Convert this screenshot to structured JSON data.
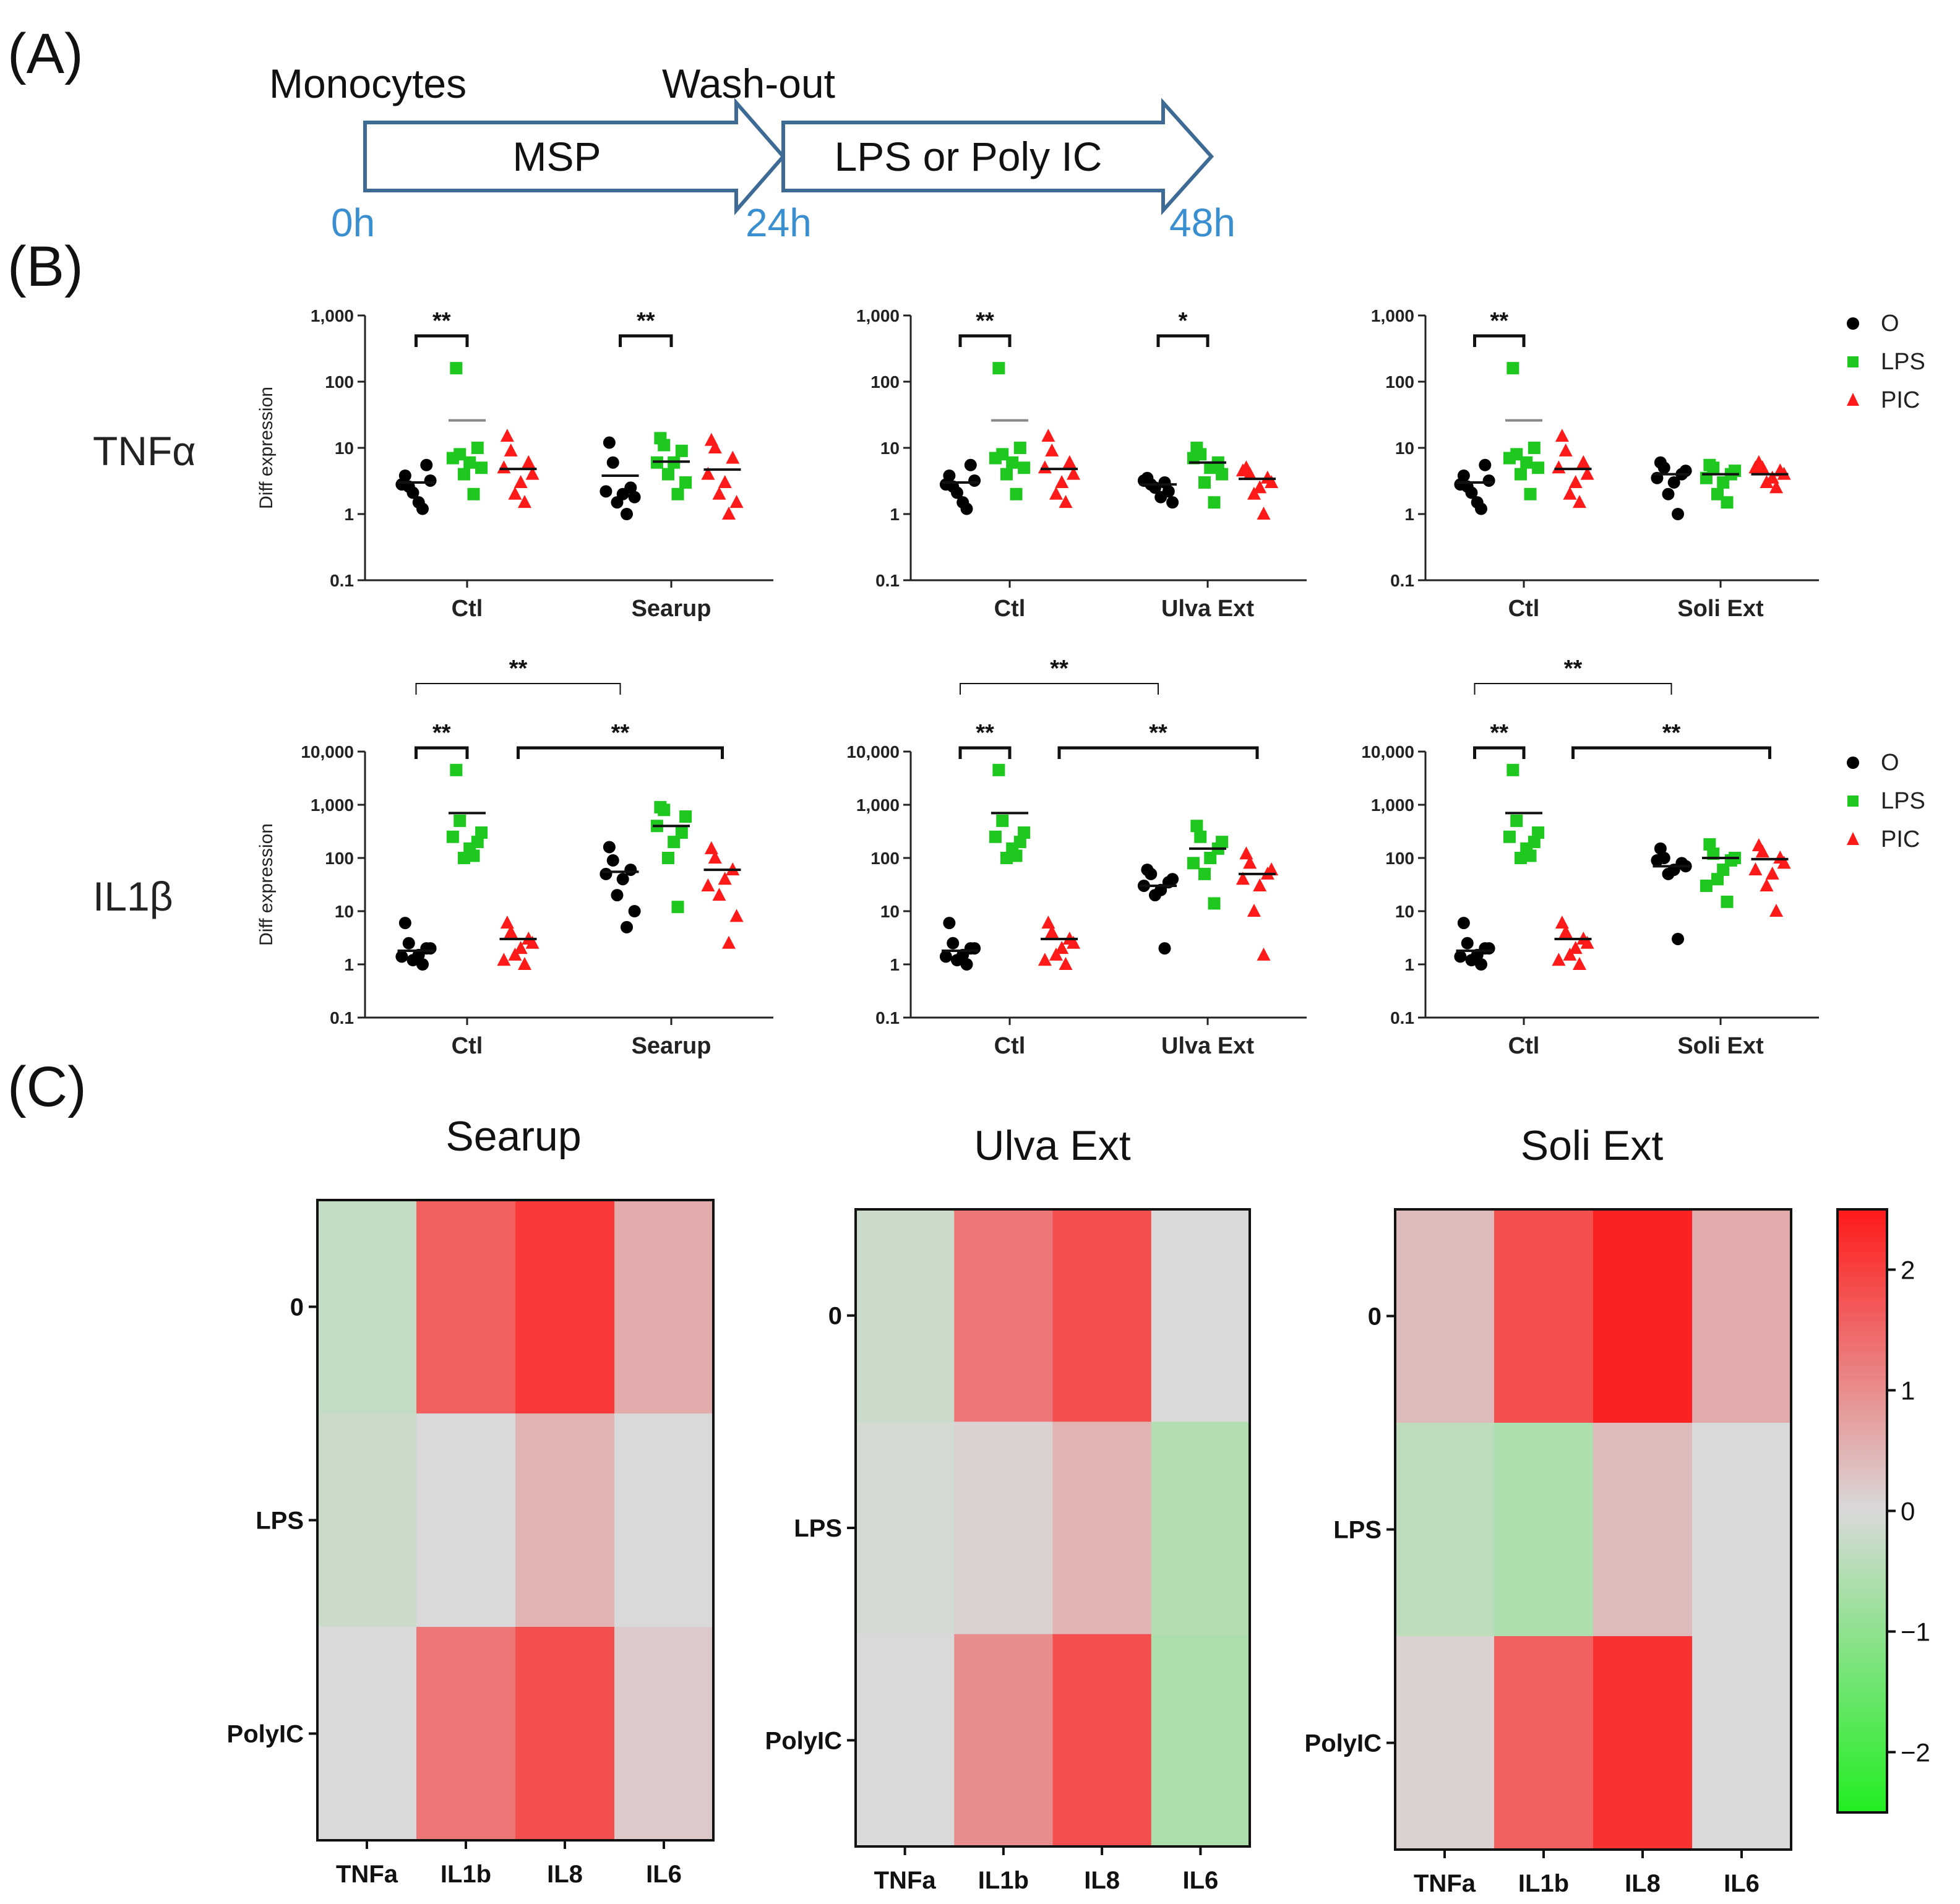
{
  "panel_labels": [
    "(A)",
    "(B)",
    "(C)"
  ],
  "timeline": {
    "label_start": "Monocytes",
    "label_mid": "Wash-out",
    "arrow1_text": "MSP",
    "arrow2_text": "LPS or Poly IC",
    "t0": "0h",
    "t1": "24h",
    "t2": "48h",
    "arrow_color": "#3e6b96",
    "time_color": "#3a8fd0"
  },
  "colors": {
    "O": "#000000",
    "LPS": "#1ec81e",
    "PIC": "#ff1a1a"
  },
  "chart_data": [
    {
      "type": "scatter",
      "id": "tnf-searup",
      "gene": "TNFα",
      "ylabel": "Diff expression",
      "yscale": "log",
      "ylim": [
        0.1,
        1000
      ],
      "yticks": [
        "0.1",
        "1",
        "10",
        "100",
        "1,000"
      ],
      "groups": [
        "Ctl",
        "Searup"
      ],
      "series": [
        {
          "name": "O",
          "group": "Ctl",
          "values": [
            3.8,
            2.6,
            5.5,
            1.5,
            2.1,
            1.2,
            3.2,
            2.8
          ],
          "mean": 3.0
        },
        {
          "name": "LPS",
          "group": "Ctl",
          "values": [
            160,
            8,
            10,
            6,
            4,
            2,
            5,
            7
          ],
          "mean": 26
        },
        {
          "name": "PIC",
          "group": "Ctl",
          "values": [
            15,
            9,
            6,
            3,
            2,
            1.5,
            4,
            5
          ],
          "mean": 4.8
        },
        {
          "name": "O",
          "group": "Searup",
          "values": [
            12,
            6,
            2.5,
            2,
            1.5,
            1,
            1.8,
            2.2
          ],
          "mean": 3.8
        },
        {
          "name": "LPS",
          "group": "Searup",
          "values": [
            14,
            11,
            9,
            6,
            4,
            2,
            3,
            6
          ],
          "mean": 6.2
        },
        {
          "name": "PIC",
          "group": "Searup",
          "values": [
            13,
            10,
            7,
            3,
            2,
            1,
            1.5,
            4
          ],
          "mean": 4.7
        }
      ],
      "significance": [
        {
          "label": "**",
          "from": [
            "Ctl",
            "O"
          ],
          "to": [
            "Ctl",
            "LPS"
          ]
        },
        {
          "label": "**",
          "from": [
            "Searup",
            "O"
          ],
          "to": [
            "Searup",
            "LPS"
          ]
        }
      ]
    },
    {
      "type": "scatter",
      "id": "tnf-ulva",
      "gene": "TNFα",
      "ylabel": "",
      "yscale": "log",
      "ylim": [
        0.1,
        1000
      ],
      "yticks": [
        "0.1",
        "1",
        "10",
        "100",
        "1,000"
      ],
      "groups": [
        "Ctl",
        "Ulva Ext"
      ],
      "series": [
        {
          "name": "O",
          "group": "Ctl",
          "values": [
            3.8,
            2.6,
            5.5,
            1.5,
            2.1,
            1.2,
            3.2,
            2.8
          ],
          "mean": 3.0
        },
        {
          "name": "LPS",
          "group": "Ctl",
          "values": [
            160,
            8,
            10,
            6,
            4,
            2,
            5,
            7
          ],
          "mean": 26
        },
        {
          "name": "PIC",
          "group": "Ctl",
          "values": [
            15,
            9,
            6,
            3,
            2,
            1.5,
            4,
            5
          ],
          "mean": 4.8
        },
        {
          "name": "O",
          "group": "Ulva Ext",
          "values": [
            3.5,
            2.8,
            2.2,
            1.8,
            2.5,
            3.0,
            1.5,
            3.2
          ],
          "mean": 2.8
        },
        {
          "name": "LPS",
          "group": "Ulva Ext",
          "values": [
            10,
            8,
            6,
            5,
            3,
            1.5,
            4,
            7
          ],
          "mean": 6.0
        },
        {
          "name": "PIC",
          "group": "Ulva Ext",
          "values": [
            5,
            4,
            3.5,
            2.5,
            2,
            1,
            3,
            4.5
          ],
          "mean": 3.4
        }
      ],
      "significance": [
        {
          "label": "**",
          "from": [
            "Ctl",
            "O"
          ],
          "to": [
            "Ctl",
            "LPS"
          ]
        },
        {
          "label": "*",
          "from": [
            "Ulva Ext",
            "O"
          ],
          "to": [
            "Ulva Ext",
            "LPS"
          ]
        }
      ]
    },
    {
      "type": "scatter",
      "id": "tnf-soli",
      "gene": "TNFα",
      "ylabel": "",
      "yscale": "log",
      "ylim": [
        0.1,
        1000
      ],
      "yticks": [
        "0.1",
        "1",
        "10",
        "100",
        "1,000"
      ],
      "groups": [
        "Ctl",
        "Soli Ext"
      ],
      "series": [
        {
          "name": "O",
          "group": "Ctl",
          "values": [
            3.8,
            2.6,
            5.5,
            1.5,
            2.1,
            1.2,
            3.2,
            2.8
          ],
          "mean": 3.0
        },
        {
          "name": "LPS",
          "group": "Ctl",
          "values": [
            160,
            8,
            10,
            6,
            4,
            2,
            5,
            7
          ],
          "mean": 26
        },
        {
          "name": "PIC",
          "group": "Ctl",
          "values": [
            15,
            9,
            6,
            3,
            2,
            1.5,
            4,
            5
          ],
          "mean": 4.8
        },
        {
          "name": "O",
          "group": "Soli Ext",
          "values": [
            6,
            5,
            4,
            3,
            2,
            1,
            4.5,
            3.5
          ],
          "mean": 4.0
        },
        {
          "name": "LPS",
          "group": "Soli Ext",
          "values": [
            5.5,
            5,
            4,
            3,
            2,
            1.5,
            4.5,
            3.5
          ],
          "mean": 4.0
        },
        {
          "name": "PIC",
          "group": "Soli Ext",
          "values": [
            6,
            5,
            4.5,
            3.5,
            3,
            2.5,
            4,
            5
          ],
          "mean": 4.0
        }
      ],
      "significance": [
        {
          "label": "**",
          "from": [
            "Ctl",
            "O"
          ],
          "to": [
            "Ctl",
            "LPS"
          ]
        }
      ]
    },
    {
      "type": "scatter",
      "id": "il1-searup",
      "gene": "IL1β",
      "ylabel": "Diff expression",
      "yscale": "log",
      "ylim": [
        0.1,
        10000
      ],
      "yticks": [
        "0.1",
        "1",
        "10",
        "100",
        "1,000",
        "10,000"
      ],
      "groups": [
        "Ctl",
        "Searup"
      ],
      "series": [
        {
          "name": "O",
          "group": "Ctl",
          "values": [
            6,
            2.5,
            2,
            1.5,
            1.2,
            1,
            2,
            1.4
          ],
          "mean": 1.8
        },
        {
          "name": "LPS",
          "group": "Ctl",
          "values": [
            4500,
            500,
            200,
            150,
            100,
            110,
            300,
            250
          ],
          "mean": 700
        },
        {
          "name": "PIC",
          "group": "Ctl",
          "values": [
            6,
            4,
            3,
            2,
            1.5,
            1,
            2.5,
            1.2
          ],
          "mean": 3.0
        },
        {
          "name": "O",
          "group": "Searup",
          "values": [
            160,
            90,
            60,
            40,
            20,
            5,
            10,
            50
          ],
          "mean": 55
        },
        {
          "name": "LPS",
          "group": "Searup",
          "values": [
            900,
            800,
            300,
            200,
            100,
            12,
            600,
            400
          ],
          "mean": 400
        },
        {
          "name": "PIC",
          "group": "Searup",
          "values": [
            150,
            100,
            60,
            40,
            20,
            2.5,
            8,
            30
          ],
          "mean": 60
        }
      ],
      "significance": [
        {
          "label": "**",
          "from": [
            "Ctl",
            "O"
          ],
          "to": [
            "Searup",
            "O"
          ]
        },
        {
          "label": "**",
          "from": [
            "Ctl",
            "O"
          ],
          "to": [
            "Ctl",
            "LPS"
          ]
        },
        {
          "label": "**",
          "from": [
            "Ctl",
            "PIC"
          ],
          "to": [
            "Searup",
            "PIC"
          ]
        }
      ]
    },
    {
      "type": "scatter",
      "id": "il1-ulva",
      "gene": "IL1β",
      "ylabel": "",
      "yscale": "log",
      "ylim": [
        0.1,
        10000
      ],
      "yticks": [
        "0.1",
        "1",
        "10",
        "100",
        "1,000",
        "10,000"
      ],
      "groups": [
        "Ctl",
        "Ulva Ext"
      ],
      "series": [
        {
          "name": "O",
          "group": "Ctl",
          "values": [
            6,
            2.5,
            2,
            1.5,
            1.2,
            1,
            2,
            1.4
          ],
          "mean": 1.8
        },
        {
          "name": "LPS",
          "group": "Ctl",
          "values": [
            4500,
            500,
            200,
            150,
            100,
            110,
            300,
            250
          ],
          "mean": 700
        },
        {
          "name": "PIC",
          "group": "Ctl",
          "values": [
            6,
            4,
            3,
            2,
            1.5,
            1,
            2.5,
            1.2
          ],
          "mean": 3.0
        },
        {
          "name": "O",
          "group": "Ulva Ext",
          "values": [
            60,
            50,
            35,
            25,
            20,
            2,
            40,
            30
          ],
          "mean": 30
        },
        {
          "name": "LPS",
          "group": "Ulva Ext",
          "values": [
            400,
            250,
            150,
            100,
            50,
            14,
            200,
            80
          ],
          "mean": 150
        },
        {
          "name": "PIC",
          "group": "Ulva Ext",
          "values": [
            120,
            80,
            50,
            30,
            10,
            1.5,
            60,
            40
          ],
          "mean": 50
        }
      ],
      "significance": [
        {
          "label": "**",
          "from": [
            "Ctl",
            "O"
          ],
          "to": [
            "Ulva Ext",
            "O"
          ]
        },
        {
          "label": "**",
          "from": [
            "Ctl",
            "O"
          ],
          "to": [
            "Ctl",
            "LPS"
          ]
        },
        {
          "label": "**",
          "from": [
            "Ctl",
            "PIC"
          ],
          "to": [
            "Ulva Ext",
            "PIC"
          ]
        }
      ]
    },
    {
      "type": "scatter",
      "id": "il1-soli",
      "gene": "IL1β",
      "ylabel": "",
      "yscale": "log",
      "ylim": [
        0.1,
        10000
      ],
      "yticks": [
        "0.1",
        "1",
        "10",
        "100",
        "1,000",
        "10,000"
      ],
      "groups": [
        "Ctl",
        "Soli Ext"
      ],
      "series": [
        {
          "name": "O",
          "group": "Ctl",
          "values": [
            6,
            2.5,
            2,
            1.5,
            1.2,
            1,
            2,
            1.4
          ],
          "mean": 1.8
        },
        {
          "name": "LPS",
          "group": "Ctl",
          "values": [
            4500,
            500,
            200,
            150,
            100,
            110,
            300,
            250
          ],
          "mean": 700
        },
        {
          "name": "PIC",
          "group": "Ctl",
          "values": [
            6,
            4,
            3,
            2,
            1.5,
            1,
            2.5,
            1.2
          ],
          "mean": 3.0
        },
        {
          "name": "O",
          "group": "Soli Ext",
          "values": [
            150,
            100,
            80,
            60,
            50,
            3,
            70,
            90
          ],
          "mean": 70
        },
        {
          "name": "LPS",
          "group": "Soli Ext",
          "values": [
            180,
            120,
            90,
            60,
            40,
            15,
            100,
            30
          ],
          "mean": 100
        },
        {
          "name": "PIC",
          "group": "Soli Ext",
          "values": [
            170,
            130,
            100,
            50,
            30,
            10,
            80,
            60
          ],
          "mean": 95
        }
      ],
      "significance": [
        {
          "label": "**",
          "from": [
            "Ctl",
            "O"
          ],
          "to": [
            "Soli Ext",
            "O"
          ]
        },
        {
          "label": "**",
          "from": [
            "Ctl",
            "O"
          ],
          "to": [
            "Ctl",
            "LPS"
          ]
        },
        {
          "label": "**",
          "from": [
            "Ctl",
            "PIC"
          ],
          "to": [
            "Soli Ext",
            "PIC"
          ]
        }
      ]
    },
    {
      "type": "heatmap",
      "id": "hm-searup",
      "title": "Searup",
      "columns": [
        "TNFa",
        "IL1b",
        "IL8",
        "IL6"
      ],
      "rows": [
        "0",
        "LPS",
        "PolyIC"
      ],
      "values": [
        [
          -0.3,
          1.6,
          2.1,
          0.6
        ],
        [
          -0.2,
          0.0,
          0.5,
          0.0
        ],
        [
          0.0,
          1.3,
          1.8,
          0.2
        ]
      ]
    },
    {
      "type": "heatmap",
      "id": "hm-ulva",
      "title": "Ulva Ext",
      "columns": [
        "TNFa",
        "IL1b",
        "IL8",
        "IL6"
      ],
      "rows": [
        "0",
        "LPS",
        "PolyIC"
      ],
      "values": [
        [
          -0.2,
          1.3,
          1.8,
          0.0
        ],
        [
          -0.1,
          0.1,
          0.5,
          -0.5
        ],
        [
          0.0,
          1.0,
          1.8,
          -0.6
        ]
      ]
    },
    {
      "type": "heatmap",
      "id": "hm-soli",
      "title": "Soli Ext",
      "columns": [
        "TNFa",
        "IL1b",
        "IL8",
        "IL6"
      ],
      "rows": [
        "0",
        "LPS",
        "PolyIC"
      ],
      "values": [
        [
          0.4,
          1.8,
          2.4,
          0.6
        ],
        [
          -0.4,
          -0.6,
          0.4,
          0.0
        ],
        [
          0.1,
          1.6,
          2.2,
          0.0
        ]
      ]
    }
  ],
  "legend": {
    "items": [
      "O",
      "LPS",
      "PIC"
    ]
  },
  "colorbar": {
    "min": -2.5,
    "max": 2.5,
    "ticks": [
      2,
      1,
      0,
      -1,
      -2
    ],
    "tick_labels": [
      "2",
      "1",
      "0",
      "−1",
      "−2"
    ],
    "low": "#22ee22",
    "mid": "#d9d9d9",
    "high": "#ff1a1a"
  }
}
